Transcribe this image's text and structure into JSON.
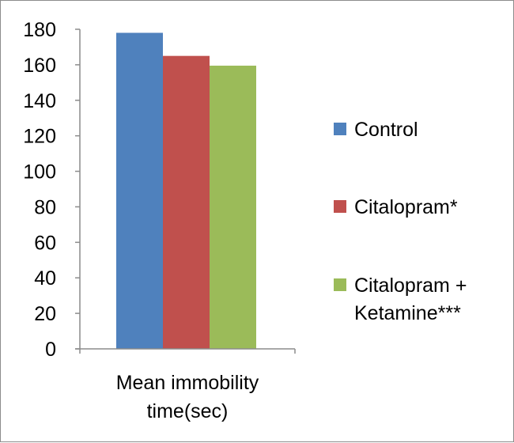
{
  "chart_data": {
    "type": "bar",
    "categories": [
      "Mean immobility time(sec)"
    ],
    "category_label_lines": [
      "Mean immobility",
      "time(sec)"
    ],
    "series": [
      {
        "name": "Control",
        "name_lines": [
          "Control"
        ],
        "values": [
          178
        ],
        "color": "#4f81bd"
      },
      {
        "name": "Citalopram*",
        "name_lines": [
          "Citalopram*"
        ],
        "values": [
          165
        ],
        "color": "#c0504d"
      },
      {
        "name": "Citalopram + Ketamine***",
        "name_lines": [
          "Citalopram +",
          "Ketamine***"
        ],
        "values": [
          159.5
        ],
        "color": "#9bbb59"
      }
    ],
    "ylim": [
      0,
      180
    ],
    "yticks": [
      0,
      20,
      40,
      60,
      80,
      100,
      120,
      140,
      160,
      180
    ],
    "grid": false,
    "legend_position": "right"
  }
}
